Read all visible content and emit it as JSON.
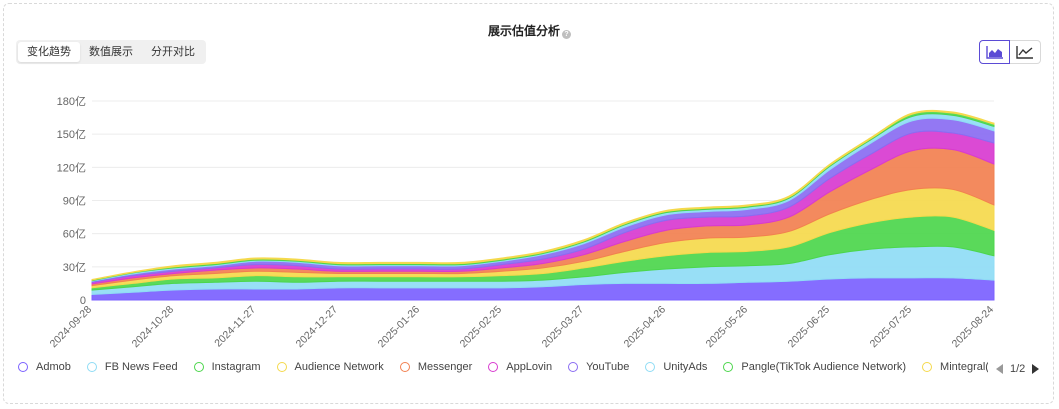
{
  "title": "展示估值分析",
  "tabs": [
    "变化趋势",
    "数值展示",
    "分开对比"
  ],
  "active_tab": 0,
  "chart_type_options": [
    "area-chart-icon",
    "line-chart-icon"
  ],
  "legend": {
    "pager": "1/2",
    "overflow_marker_color": "#f26a2e"
  },
  "chart_data": {
    "type": "area",
    "stacked": true,
    "x": [
      "2024-09-28",
      "2024-10-13",
      "2024-10-28",
      "2024-11-12",
      "2024-11-27",
      "2024-12-12",
      "2024-12-27",
      "2025-01-11",
      "2025-01-26",
      "2025-02-10",
      "2025-02-25",
      "2025-03-12",
      "2025-03-27",
      "2025-04-11",
      "2025-04-26",
      "2025-05-11",
      "2025-05-26",
      "2025-06-10",
      "2025-06-25",
      "2025-07-10",
      "2025-07-25",
      "2025-08-09",
      "2025-08-24"
    ],
    "xticks": [
      "2024-09-28",
      "2024-10-28",
      "2024-11-27",
      "2024-12-27",
      "2025-01-26",
      "2025-02-25",
      "2025-03-27",
      "2025-04-26",
      "2025-05-26",
      "2025-06-25",
      "2025-07-25",
      "2025-08-24"
    ],
    "yticks": [
      "0",
      "30亿",
      "60亿",
      "90亿",
      "120亿",
      "150亿",
      "180亿"
    ],
    "ylim": [
      0,
      180
    ],
    "grid": true,
    "legend_position": "bottom",
    "series": [
      {
        "name": "Admob",
        "color": "#7b61ff",
        "values": [
          5,
          7,
          9,
          10,
          10,
          10,
          11,
          11,
          11,
          11,
          11,
          12,
          14,
          15,
          15,
          15,
          16,
          17,
          19,
          20,
          20,
          20,
          18
        ]
      },
      {
        "name": "FB News Feed",
        "color": "#8fdcf5",
        "values": [
          4,
          5,
          6,
          6,
          7,
          6,
          6,
          6,
          6,
          6,
          6,
          6,
          7,
          10,
          13,
          15,
          15,
          16,
          22,
          26,
          28,
          28,
          22
        ]
      },
      {
        "name": "Instagram",
        "color": "#4cd64c",
        "values": [
          2,
          3,
          4,
          4,
          5,
          5,
          4,
          4,
          4,
          4,
          5,
          6,
          8,
          10,
          12,
          13,
          13,
          15,
          20,
          24,
          27,
          27,
          23
        ]
      },
      {
        "name": "Audience Network",
        "color": "#f5d94c",
        "values": [
          2,
          3,
          3,
          4,
          4,
          4,
          3,
          3,
          3,
          3,
          4,
          5,
          6,
          9,
          12,
          13,
          13,
          14,
          17,
          21,
          25,
          25,
          23
        ]
      },
      {
        "name": "Messenger",
        "color": "#f28050",
        "values": [
          1.5,
          2,
          2,
          3,
          3,
          3,
          2,
          2,
          2,
          2,
          3,
          4,
          6,
          9,
          11,
          11,
          11,
          13,
          20,
          27,
          35,
          36,
          37
        ]
      },
      {
        "name": "AppLovin",
        "color": "#d83bd0",
        "values": [
          1.5,
          2,
          2,
          2,
          3,
          3,
          2,
          2,
          2,
          2,
          3,
          4,
          5,
          8,
          9,
          8,
          8,
          9,
          12,
          14,
          16,
          15,
          19
        ]
      },
      {
        "name": "YouTube",
        "color": "#8a6cf2",
        "values": [
          1,
          1.5,
          2,
          2,
          3,
          3,
          3,
          3,
          3,
          3,
          3,
          4,
          5,
          5,
          5,
          5,
          6,
          6,
          8,
          10,
          11,
          12,
          11
        ]
      },
      {
        "name": "UnityAds",
        "color": "#8fdcf5",
        "values": [
          0.5,
          1,
          1,
          1,
          1,
          1,
          1,
          1,
          1,
          1,
          1,
          1,
          1.5,
          2,
          2,
          2,
          2,
          2,
          3,
          3,
          4,
          4,
          4
        ]
      },
      {
        "name": "Pangle(TikTok Audience Network)",
        "color": "#4cd64c",
        "values": [
          0.5,
          0.5,
          1,
          1,
          1,
          1,
          1,
          1,
          1,
          1,
          1,
          1,
          1,
          1,
          1,
          1,
          1,
          1,
          1,
          1,
          2,
          2,
          2
        ]
      },
      {
        "name": "Mintegral(Mobvista)",
        "color": "#f5d94c",
        "values": [
          0.5,
          0.5,
          1,
          1,
          1,
          1,
          1,
          1,
          1,
          1,
          1,
          1,
          1,
          1,
          1,
          1,
          1,
          1,
          1,
          1,
          1,
          1,
          1
        ]
      }
    ]
  }
}
